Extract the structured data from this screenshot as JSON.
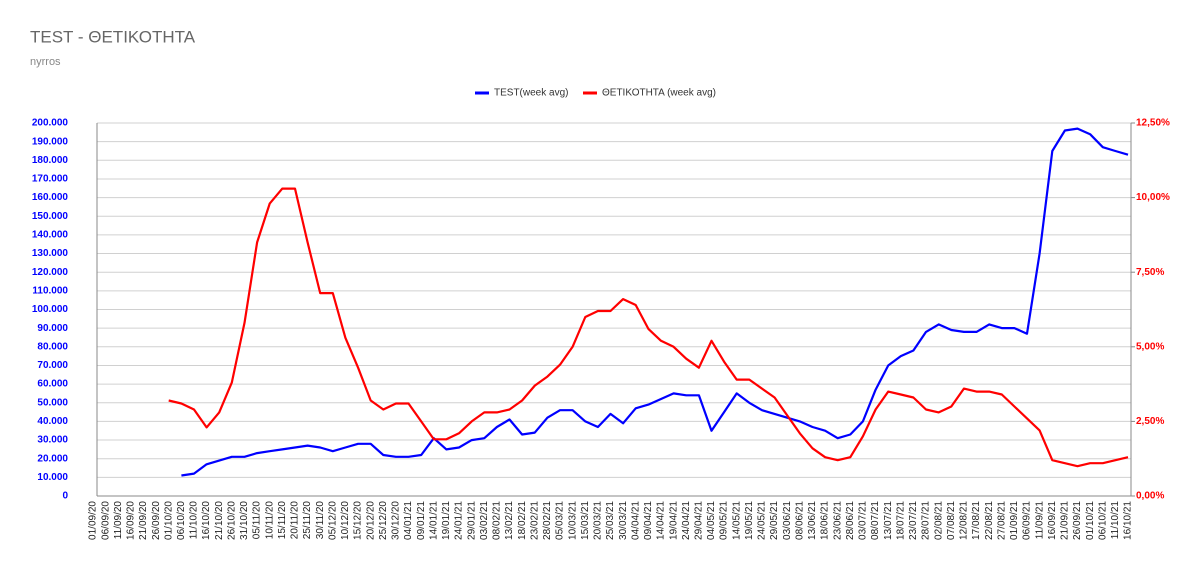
{
  "chart_data": {
    "type": "line",
    "title": "TEST - ΘΕΤΙΚΟΤΗΤΑ",
    "subtitle": "nyrros",
    "legend": "top",
    "grid": true,
    "categories": [
      "01/09/20",
      "06/09/20",
      "11/09/20",
      "16/09/20",
      "21/09/20",
      "26/09/20",
      "01/10/20",
      "06/10/20",
      "11/10/20",
      "16/10/20",
      "21/10/20",
      "26/10/20",
      "31/10/20",
      "05/11/20",
      "10/11/20",
      "15/11/20",
      "20/11/20",
      "25/11/20",
      "30/11/20",
      "05/12/20",
      "10/12/20",
      "15/12/20",
      "20/12/20",
      "25/12/20",
      "30/12/20",
      "04/01/21",
      "09/01/21",
      "14/01/21",
      "19/01/21",
      "24/01/21",
      "29/01/21",
      "03/02/21",
      "08/02/21",
      "13/02/21",
      "18/02/21",
      "23/02/21",
      "28/02/21",
      "05/03/21",
      "10/03/21",
      "15/03/21",
      "20/03/21",
      "25/03/21",
      "30/03/21",
      "04/04/21",
      "09/04/21",
      "14/04/21",
      "19/04/21",
      "24/04/21",
      "29/04/21",
      "04/05/21",
      "09/05/21",
      "14/05/21",
      "19/05/21",
      "24/05/21",
      "29/05/21",
      "03/06/21",
      "08/06/21",
      "13/06/21",
      "18/06/21",
      "23/06/21",
      "28/06/21",
      "03/07/21",
      "08/07/21",
      "13/07/21",
      "18/07/21",
      "23/07/21",
      "28/07/21",
      "02/08/21",
      "07/08/21",
      "12/08/21",
      "17/08/21",
      "22/08/21",
      "27/08/21",
      "01/09/21",
      "06/09/21",
      "11/09/21",
      "16/09/21",
      "21/09/21",
      "26/09/21",
      "01/10/21",
      "06/10/21",
      "11/10/21",
      "16/10/21"
    ],
    "series": [
      {
        "name": "TEST(week avg)",
        "color": "#0000ff",
        "values": [
          null,
          null,
          null,
          null,
          null,
          null,
          null,
          11000,
          12000,
          17000,
          19000,
          21000,
          21000,
          23000,
          24000,
          25000,
          26000,
          27000,
          26000,
          24000,
          26000,
          28000,
          28000,
          22000,
          21000,
          21000,
          22000,
          31000,
          25000,
          26000,
          30000,
          31000,
          37000,
          41000,
          33000,
          34000,
          42000,
          46000,
          46000,
          40000,
          37000,
          44000,
          39000,
          47000,
          49000,
          52000,
          55000,
          54000,
          54000,
          35000,
          45000,
          55000,
          50000,
          46000,
          44000,
          42000,
          40000,
          37000,
          35000,
          31000,
          33000,
          40000,
          57000,
          70000,
          75000,
          78000,
          88000,
          92000,
          89000,
          88000,
          88000,
          92000,
          90000,
          90000,
          87000,
          130000,
          185000,
          196000,
          197000,
          194000,
          187000,
          185000,
          183000
        ]
      },
      {
        "name": "ΘΕΤΙΚΟΤΗΤΑ (week avg)",
        "color": "#ff0000",
        "axis": "y2",
        "values": [
          null,
          null,
          null,
          null,
          null,
          null,
          3.2,
          3.1,
          2.9,
          2.3,
          2.8,
          3.8,
          5.8,
          8.5,
          9.8,
          10.3,
          10.3,
          8.5,
          6.8,
          6.8,
          5.3,
          4.3,
          3.2,
          2.9,
          3.1,
          3.1,
          2.5,
          1.9,
          1.9,
          2.1,
          2.5,
          2.8,
          2.8,
          2.9,
          3.2,
          3.7,
          4.0,
          4.4,
          5.0,
          6.0,
          6.2,
          6.2,
          6.6,
          6.4,
          5.6,
          5.2,
          5.0,
          4.6,
          4.3,
          5.2,
          4.5,
          3.9,
          3.9,
          3.6,
          3.3,
          2.7,
          2.1,
          1.6,
          1.3,
          1.2,
          1.3,
          2.0,
          2.9,
          3.5,
          3.4,
          3.3,
          2.9,
          2.8,
          3.0,
          3.6,
          3.5,
          3.5,
          3.4,
          3.0,
          2.6,
          2.2,
          1.2,
          1.1,
          1.0,
          1.1,
          1.1,
          1.2,
          1.3
        ]
      }
    ],
    "ylim": [
      0,
      200000
    ],
    "yticks": [
      0,
      {
        "value": 10000,
        "label": "10.000"
      },
      {
        "value": 20000,
        "label": "20.000"
      },
      {
        "value": 30000,
        "label": "30.000"
      },
      {
        "value": 40000,
        "label": "40.000"
      },
      {
        "value": 50000,
        "label": "50.000"
      },
      {
        "value": 60000,
        "label": "60.000"
      },
      {
        "value": 70000,
        "label": "70.000"
      },
      {
        "value": 80000,
        "label": "80.000"
      },
      {
        "value": 90000,
        "label": "90.000"
      },
      {
        "value": 100000,
        "label": "100.000"
      },
      {
        "value": 110000,
        "label": "110.000"
      },
      {
        "value": 120000,
        "label": "120.000"
      },
      {
        "value": 130000,
        "label": "130.000"
      },
      {
        "value": 140000,
        "label": "140.000"
      },
      {
        "value": 150000,
        "label": "150.000"
      },
      {
        "value": 160000,
        "label": "160.000"
      },
      {
        "value": 170000,
        "label": "170.000"
      },
      {
        "value": 180000,
        "label": "180.000"
      },
      {
        "value": 190000,
        "label": "190.000"
      },
      {
        "value": 200000,
        "label": "200.000"
      }
    ],
    "y2lim": [
      0,
      12.5
    ],
    "y2ticks": [
      {
        "value": 0,
        "label": "0,00%"
      },
      {
        "value": 2.5,
        "label": "2,50%"
      },
      {
        "value": 5,
        "label": "5,00%"
      },
      {
        "value": 7.5,
        "label": "7,50%"
      },
      {
        "value": 10,
        "label": "10,00%"
      },
      {
        "value": 12.5,
        "label": "12,50%"
      }
    ]
  }
}
